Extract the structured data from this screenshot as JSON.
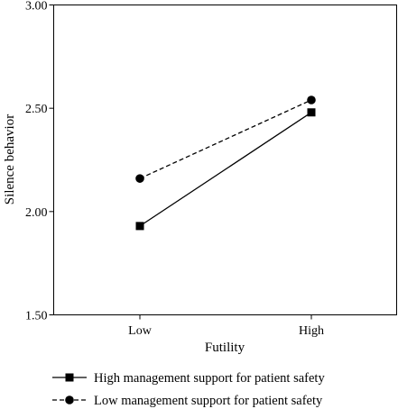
{
  "chart_data": {
    "type": "line",
    "title": "",
    "xlabel": "Futility",
    "ylabel": "Silence behavior",
    "categories": [
      "Low",
      "High"
    ],
    "ylim": [
      1.5,
      3.0
    ],
    "yticks": [
      "1.50",
      "2.00",
      "2.50",
      "3.00"
    ],
    "grid": false,
    "legend_position": "bottom",
    "series": [
      {
        "name": "High management support for patient safety",
        "values": [
          1.93,
          2.48
        ],
        "marker": "square",
        "line_style": "solid",
        "color": "#000000"
      },
      {
        "name": "Low management support for patient safety",
        "values": [
          2.16,
          2.54
        ],
        "marker": "circle",
        "line_style": "dashed",
        "color": "#000000"
      }
    ]
  }
}
